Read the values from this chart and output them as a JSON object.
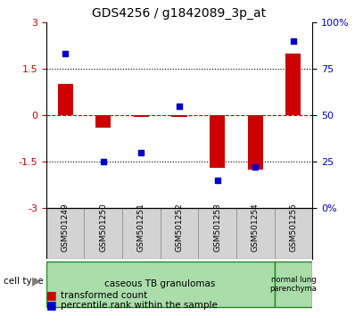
{
  "title": "GDS4256 / g1842089_3p_at",
  "samples": [
    "GSM501249",
    "GSM501250",
    "GSM501251",
    "GSM501252",
    "GSM501253",
    "GSM501254",
    "GSM501255"
  ],
  "transformed_count": [
    1.0,
    -0.4,
    -0.05,
    -0.05,
    -1.7,
    -1.75,
    2.0
  ],
  "percentile_rank_pct": [
    83,
    25,
    30,
    55,
    15,
    22,
    90
  ],
  "ylim": [
    -3,
    3
  ],
  "right_ylim": [
    0,
    100
  ],
  "right_yticks": [
    0,
    25,
    50,
    75,
    100
  ],
  "right_yticklabels": [
    "0%",
    "25",
    "50",
    "75",
    "100%"
  ],
  "left_yticks": [
    -3,
    -1.5,
    0,
    1.5,
    3
  ],
  "left_yticklabels": [
    "-3",
    "-1.5",
    "0",
    "1.5",
    "3"
  ],
  "hlines": [
    1.5,
    0.0,
    -1.5
  ],
  "hline_styles": [
    "dotted",
    "dashed_red",
    "dotted"
  ],
  "bar_color": "#cc0000",
  "dot_color": "#0000cc",
  "cell_types": [
    {
      "label": "caseous TB granulomas",
      "samples": [
        0,
        1,
        2,
        3,
        4,
        5
      ],
      "color": "#aaddaa"
    },
    {
      "label": "normal lung\nparenchyma",
      "samples": [
        6
      ],
      "color": "#aaddaa"
    }
  ],
  "group_boundaries": [
    0,
    6,
    7
  ],
  "legend_red_label": "transformed count",
  "legend_blue_label": "percentile rank within the sample",
  "background_color": "#ffffff",
  "plot_bg_color": "#ffffff",
  "tick_label_color_left": "#cc0000",
  "tick_label_color_right": "#0000cc",
  "bar_width": 0.4
}
